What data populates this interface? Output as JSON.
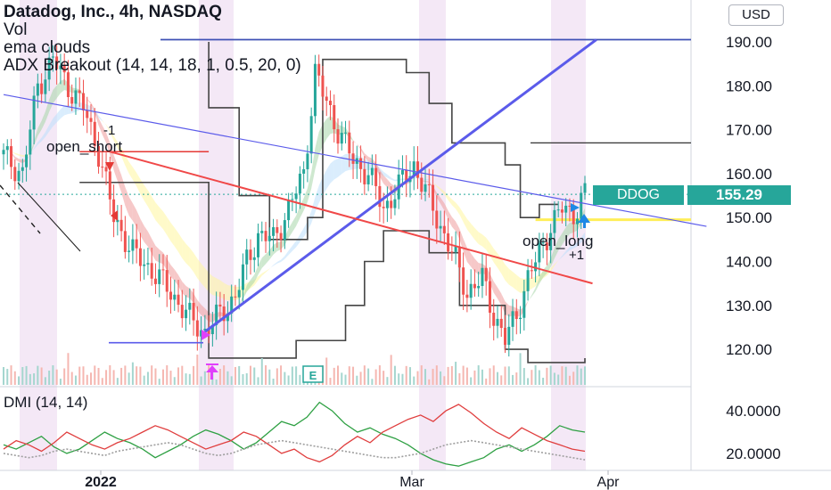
{
  "header": {
    "title": "Datadog, Inc., 4h, NASDAQ",
    "indicators": [
      "Vol",
      "ema clouds",
      "ADX Breakout (14, 14, 18, 1, 0.5, 20, 0)"
    ],
    "currency_button": "USD"
  },
  "last_price": {
    "ticker": "DDOG",
    "value": "155.29",
    "color": "#26a69a"
  },
  "annotations": {
    "open_short": "open_short",
    "minus_one": "-1",
    "open_long": "open_long",
    "plus_one": "+1",
    "earnings_marker": "E"
  },
  "dmi_label": "DMI (14, 14)",
  "chart_data": [
    {
      "type": "candlestick",
      "symbol": "DDOG",
      "interval": "4h",
      "exchange": "NASDAQ",
      "currency": "USD",
      "ylim": [
        113,
        196
      ],
      "y_ticks": [
        "120.00",
        "130.00",
        "140.00",
        "150.00",
        "160.00",
        "170.00",
        "180.00",
        "190.00"
      ],
      "x_ticks": [
        "2022",
        "Mar",
        "Apr"
      ],
      "last_value": 155.29,
      "approx_close_path": [
        {
          "bar": 0,
          "close": 164
        },
        {
          "bar": 5,
          "close": 160
        },
        {
          "bar": 9,
          "close": 180
        },
        {
          "bar": 13,
          "close": 186
        },
        {
          "bar": 17,
          "close": 180
        },
        {
          "bar": 21,
          "close": 175
        },
        {
          "bar": 25,
          "close": 165
        },
        {
          "bar": 29,
          "close": 150
        },
        {
          "bar": 34,
          "close": 142
        },
        {
          "bar": 39,
          "close": 138
        },
        {
          "bar": 44,
          "close": 133
        },
        {
          "bar": 49,
          "close": 127
        },
        {
          "bar": 53,
          "close": 124
        },
        {
          "bar": 57,
          "close": 128
        },
        {
          "bar": 61,
          "close": 132
        },
        {
          "bar": 64,
          "close": 140
        },
        {
          "bar": 67,
          "close": 146
        },
        {
          "bar": 71,
          "close": 145
        },
        {
          "bar": 75,
          "close": 152
        },
        {
          "bar": 79,
          "close": 160
        },
        {
          "bar": 82,
          "close": 183
        },
        {
          "bar": 85,
          "close": 176
        },
        {
          "bar": 88,
          "close": 170
        },
        {
          "bar": 92,
          "close": 163
        },
        {
          "bar": 96,
          "close": 160
        },
        {
          "bar": 100,
          "close": 152
        },
        {
          "bar": 104,
          "close": 157
        },
        {
          "bar": 108,
          "close": 162
        },
        {
          "bar": 111,
          "close": 156
        },
        {
          "bar": 115,
          "close": 148
        },
        {
          "bar": 119,
          "close": 140
        },
        {
          "bar": 122,
          "close": 133
        },
        {
          "bar": 126,
          "close": 136
        },
        {
          "bar": 129,
          "close": 128
        },
        {
          "bar": 132,
          "close": 122
        },
        {
          "bar": 135,
          "close": 128
        },
        {
          "bar": 138,
          "close": 136
        },
        {
          "bar": 141,
          "close": 142
        },
        {
          "bar": 144,
          "close": 148
        },
        {
          "bar": 147,
          "close": 152
        },
        {
          "bar": 150,
          "close": 151
        },
        {
          "bar": 153,
          "close": 155.29
        }
      ],
      "bars_total": 154,
      "overlay_levels": {
        "horizontal_line": 190.5,
        "dark_horizontal_line": 167,
        "yellow_level": 149.5
      },
      "trendlines": [
        {
          "name": "rising",
          "from": {
            "bar": 53,
            "value": 124
          },
          "to": {
            "bar": 156,
            "value": 190.5
          },
          "color": "#5b5bea"
        },
        {
          "name": "falling",
          "from": {
            "bar": 0,
            "value": 178
          },
          "to": {
            "bar": 185,
            "value": 148
          },
          "color": "#5b5bea"
        },
        {
          "name": "red",
          "from": {
            "bar": 28,
            "value": 165
          },
          "to": {
            "bar": 155,
            "value": 135
          },
          "color": "#f04848"
        }
      ]
    },
    {
      "type": "line",
      "name_label": "DMI (14, 14)",
      "ylim": [
        12,
        48
      ],
      "y_ticks": [
        "20.0000",
        "40.0000"
      ],
      "series": [
        {
          "color": "#2ea043",
          "values": [
            24,
            22,
            25,
            28,
            23,
            20,
            22,
            26,
            30,
            27,
            25,
            22,
            18,
            21,
            24,
            28,
            31,
            29,
            26,
            22,
            25,
            30,
            35,
            33,
            37,
            44,
            40,
            34,
            30,
            32,
            29,
            27,
            24,
            20,
            17,
            15,
            14,
            16,
            18,
            22,
            24,
            21,
            24,
            28,
            33,
            31,
            30
          ]
        },
        {
          "color": "#e03e3e",
          "values": [
            22,
            26,
            24,
            21,
            25,
            30,
            27,
            24,
            22,
            25,
            27,
            30,
            33,
            31,
            28,
            25,
            22,
            24,
            26,
            30,
            28,
            24,
            20,
            22,
            18,
            16,
            19,
            24,
            28,
            25,
            30,
            33,
            36,
            38,
            35,
            40,
            43,
            39,
            34,
            30,
            27,
            32,
            29,
            26,
            24,
            22,
            21
          ]
        },
        {
          "color": "#9e9e9e",
          "dashed": true,
          "values": [
            20,
            19,
            18,
            19,
            21,
            22,
            21,
            20,
            19,
            21,
            22,
            23,
            24,
            25,
            24,
            22,
            20,
            19,
            20,
            22,
            24,
            25,
            26,
            25,
            24,
            23,
            22,
            21,
            20,
            19,
            18,
            18,
            19,
            20,
            22,
            24,
            25,
            26,
            25,
            24,
            23,
            22,
            21,
            20,
            19,
            18,
            17
          ]
        }
      ]
    }
  ]
}
